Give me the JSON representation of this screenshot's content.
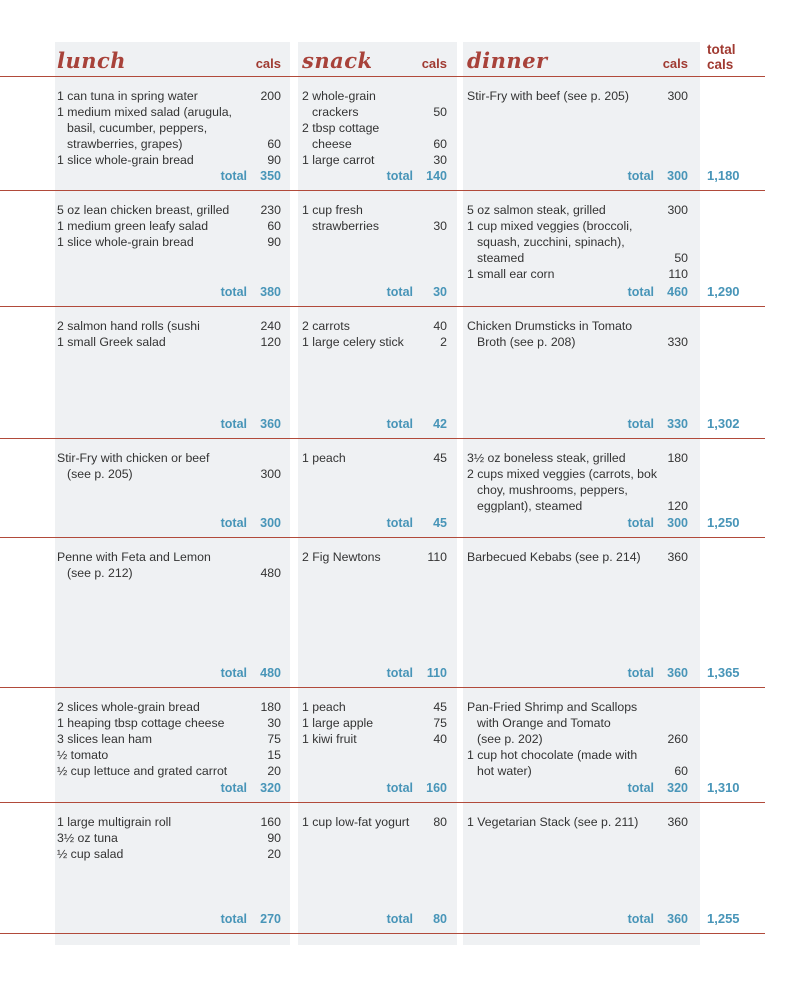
{
  "columns": {
    "lunch_label": "lunch",
    "snack_label": "snack",
    "dinner_label": "dinner",
    "cals_label": "cals",
    "total_cals_label": "total cals"
  },
  "total_label": "total",
  "colors": {
    "rule_red": "#b14a3a",
    "header_red": "#a03a31",
    "total_blue": "#4895b8",
    "column_gray": "#eff1f3",
    "body_text": "#333333"
  },
  "days": [
    {
      "lunch": {
        "items": [
          {
            "text": "1 can tuna in spring water",
            "cals": "200"
          },
          {
            "text": "1 medium mixed salad (arugula,\nbasil, cucumber, peppers,\nstrawberries, grapes)",
            "cals": "60"
          },
          {
            "text": "1 slice whole-grain bread",
            "cals": "90"
          }
        ],
        "total": "350"
      },
      "snack": {
        "items": [
          {
            "text": "2 whole-grain\ncrackers",
            "cals": "50"
          },
          {
            "text": "2 tbsp cottage\ncheese",
            "cals": "60"
          },
          {
            "text": "1 large carrot",
            "cals": "30"
          }
        ],
        "total": "140"
      },
      "dinner": {
        "items": [
          {
            "text": "Stir-Fry with beef (see p. 205)",
            "cals": "300"
          }
        ],
        "total": "300"
      },
      "total_cals": "1,180"
    },
    {
      "lunch": {
        "items": [
          {
            "text": "5 oz lean chicken breast, grilled",
            "cals": "230"
          },
          {
            "text": "1 medium green leafy salad",
            "cals": "60"
          },
          {
            "text": "1 slice whole-grain bread",
            "cals": "90"
          }
        ],
        "total": "380"
      },
      "snack": {
        "items": [
          {
            "text": "1 cup fresh\nstrawberries",
            "cals": "30"
          }
        ],
        "total": "30"
      },
      "dinner": {
        "items": [
          {
            "text": "5 oz salmon steak, grilled",
            "cals": "300"
          },
          {
            "text": "1 cup mixed veggies (broccoli,\nsquash, zucchini, spinach),\nsteamed",
            "cals": "50"
          },
          {
            "text": "1 small ear corn",
            "cals": "110"
          }
        ],
        "total": "460"
      },
      "total_cals": "1,290"
    },
    {
      "lunch": {
        "items": [
          {
            "text": "2 salmon hand rolls (sushi",
            "cals": "240"
          },
          {
            "text": "1 small Greek salad",
            "cals": "120"
          }
        ],
        "total": "360"
      },
      "snack": {
        "items": [
          {
            "text": "2 carrots",
            "cals": "40"
          },
          {
            "text": "1 large celery stick",
            "cals": "2"
          }
        ],
        "total": "42"
      },
      "dinner": {
        "items": [
          {
            "text": "Chicken Drumsticks in Tomato\nBroth (see p. 208)",
            "cals": "330"
          }
        ],
        "total": "330"
      },
      "total_cals": "1,302"
    },
    {
      "lunch": {
        "items": [
          {
            "text": "Stir-Fry with chicken or beef\n(see p. 205)",
            "cals": "300"
          }
        ],
        "total": "300"
      },
      "snack": {
        "items": [
          {
            "text": "1 peach",
            "cals": "45"
          }
        ],
        "total": "45"
      },
      "dinner": {
        "items": [
          {
            "text": "3½ oz boneless steak, grilled",
            "cals": "180"
          },
          {
            "text": "2 cups mixed veggies (carrots, bok\nchoy, mushrooms, peppers,\neggplant), steamed",
            "cals": "120"
          }
        ],
        "total": "300"
      },
      "total_cals": "1,250"
    },
    {
      "lunch": {
        "items": [
          {
            "text": "Penne with Feta and Lemon\n(see p. 212)",
            "cals": "480"
          }
        ],
        "total": "480"
      },
      "snack": {
        "items": [
          {
            "text": "2 Fig Newtons",
            "cals": "110"
          }
        ],
        "total": "110"
      },
      "dinner": {
        "items": [
          {
            "text": "Barbecued Kebabs (see p. 214)",
            "cals": "360"
          }
        ],
        "total": "360"
      },
      "total_cals": "1,365"
    },
    {
      "lunch": {
        "items": [
          {
            "text": "2 slices whole-grain bread",
            "cals": "180"
          },
          {
            "text": "1 heaping tbsp cottage cheese",
            "cals": "30"
          },
          {
            "text": "3 slices lean ham",
            "cals": "75"
          },
          {
            "text": "½ tomato",
            "cals": "15"
          },
          {
            "text": "½ cup lettuce and grated carrot",
            "cals": "20"
          }
        ],
        "total": "320"
      },
      "snack": {
        "items": [
          {
            "text": "1 peach",
            "cals": "45"
          },
          {
            "text": "1 large apple",
            "cals": "75"
          },
          {
            "text": "1 kiwi fruit",
            "cals": "40"
          }
        ],
        "total": "160"
      },
      "dinner": {
        "items": [
          {
            "text": "Pan-Fried Shrimp and Scallops\nwith Orange and Tomato\n(see p. 202)",
            "cals": "260"
          },
          {
            "text": "1 cup hot chocolate (made with\nhot water)",
            "cals": "60"
          }
        ],
        "total": "320"
      },
      "total_cals": "1,310"
    },
    {
      "lunch": {
        "items": [
          {
            "text": "1 large multigrain roll",
            "cals": "160"
          },
          {
            "text": "3½ oz tuna",
            "cals": "90"
          },
          {
            "text": "½ cup salad",
            "cals": "20"
          }
        ],
        "total": "270"
      },
      "snack": {
        "items": [
          {
            "text": "1 cup low-fat yogurt",
            "cals": "80"
          }
        ],
        "total": "80"
      },
      "dinner": {
        "items": [
          {
            "text": "1 Vegetarian Stack (see p. 211)",
            "cals": "360"
          }
        ],
        "total": "360"
      },
      "total_cals": "1,255"
    }
  ]
}
